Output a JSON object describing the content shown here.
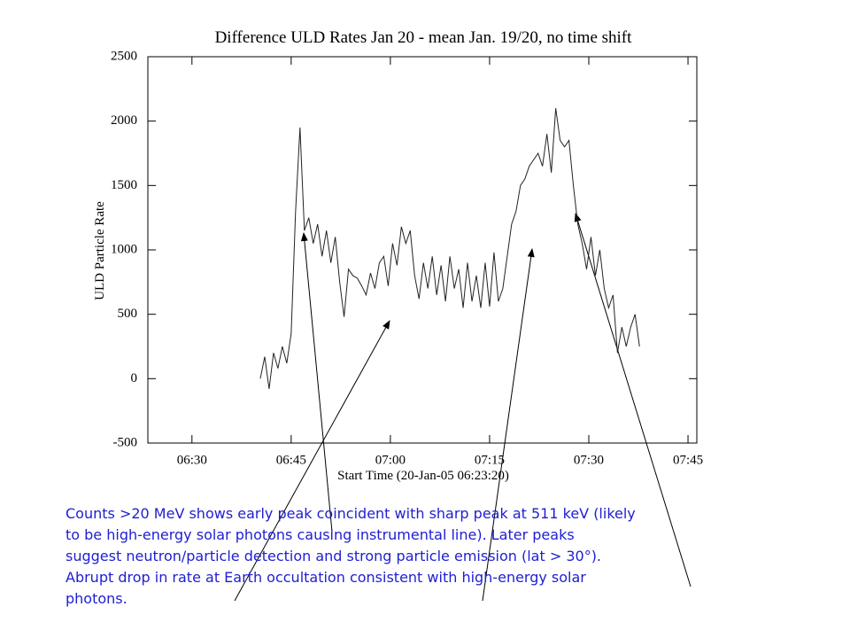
{
  "chart_data": {
    "type": "line",
    "title": "Difference ULD Rates Jan 20 - mean Jan. 19/20, no time shift",
    "xlabel": "Start Time (20-Jan-05 06:23:20)",
    "ylabel": "ULD Particle Rate",
    "x": [
      "06:40:20",
      "06:41:00",
      "06:41:40",
      "06:42:20",
      "06:43:00",
      "06:43:40",
      "06:44:20",
      "06:45:00",
      "06:45:40",
      "06:46:20",
      "06:47:00",
      "06:47:40",
      "06:48:20",
      "06:49:00",
      "06:49:40",
      "06:50:20",
      "06:51:00",
      "06:51:40",
      "06:52:20",
      "06:53:00",
      "06:53:40",
      "06:54:20",
      "06:55:00",
      "06:55:40",
      "06:56:20",
      "06:57:00",
      "06:57:40",
      "06:58:20",
      "06:59:00",
      "06:59:40",
      "07:00:20",
      "07:01:00",
      "07:01:40",
      "07:02:20",
      "07:03:00",
      "07:03:40",
      "07:04:20",
      "07:05:00",
      "07:05:40",
      "07:06:20",
      "07:07:00",
      "07:07:40",
      "07:08:20",
      "07:09:00",
      "07:09:40",
      "07:10:20",
      "07:11:00",
      "07:11:40",
      "07:12:20",
      "07:13:00",
      "07:13:40",
      "07:14:20",
      "07:15:00",
      "07:15:40",
      "07:16:20",
      "07:17:00",
      "07:17:40",
      "07:18:20",
      "07:19:00",
      "07:19:40",
      "07:20:20",
      "07:21:00",
      "07:21:40",
      "07:22:20",
      "07:23:00",
      "07:23:40",
      "07:24:20",
      "07:25:00",
      "07:25:40",
      "07:26:20",
      "07:27:00",
      "07:27:40",
      "07:28:20",
      "07:29:00",
      "07:29:40",
      "07:30:20",
      "07:31:00",
      "07:31:40",
      "07:32:20",
      "07:33:00",
      "07:33:40",
      "07:34:20",
      "07:35:00",
      "07:35:40",
      "07:36:20",
      "07:37:00",
      "07:37:40"
    ],
    "series": [
      {
        "color": "#222222",
        "values": [
          0,
          170,
          -80,
          200,
          80,
          250,
          120,
          350,
          1300,
          1950,
          1150,
          1250,
          1050,
          1200,
          950,
          1150,
          900,
          1100,
          750,
          480,
          850,
          800,
          780,
          720,
          650,
          820,
          700,
          900,
          950,
          720,
          1050,
          880,
          1180,
          1050,
          1150,
          800,
          620,
          900,
          700,
          950,
          650,
          880,
          600,
          950,
          700,
          850,
          550,
          900,
          600,
          800,
          550,
          900,
          560,
          980,
          600,
          700,
          950,
          1200,
          1300,
          1500,
          1550,
          1650,
          1700,
          1750,
          1650,
          1900,
          1600,
          2100,
          1850,
          1800,
          1850,
          1500,
          1200,
          1050,
          850,
          1100,
          800,
          1000,
          700,
          550,
          650,
          200,
          400,
          250,
          400,
          500,
          250
        ]
      }
    ],
    "xlim": [
      "06:23:20",
      "07:46:20"
    ],
    "xticks": [
      "06:30",
      "06:45",
      "07:00",
      "07:15",
      "07:30",
      "07:45"
    ],
    "ylim": [
      -500,
      2500
    ],
    "yticks": [
      -500,
      0,
      500,
      1000,
      1500,
      2000,
      2500
    ],
    "annotation": [
      "Counts >20 MeV shows early peak coincident with sharp peak at 511 keV (likely",
      "to be high-energy solar photons causing instrumental line).  Later peaks",
      "suggest neutron/particle detection and strong particle emission (lat > 30°).",
      "Abrupt drop in rate at Earth occultation consistent with high-energy solar",
      "photons."
    ]
  }
}
